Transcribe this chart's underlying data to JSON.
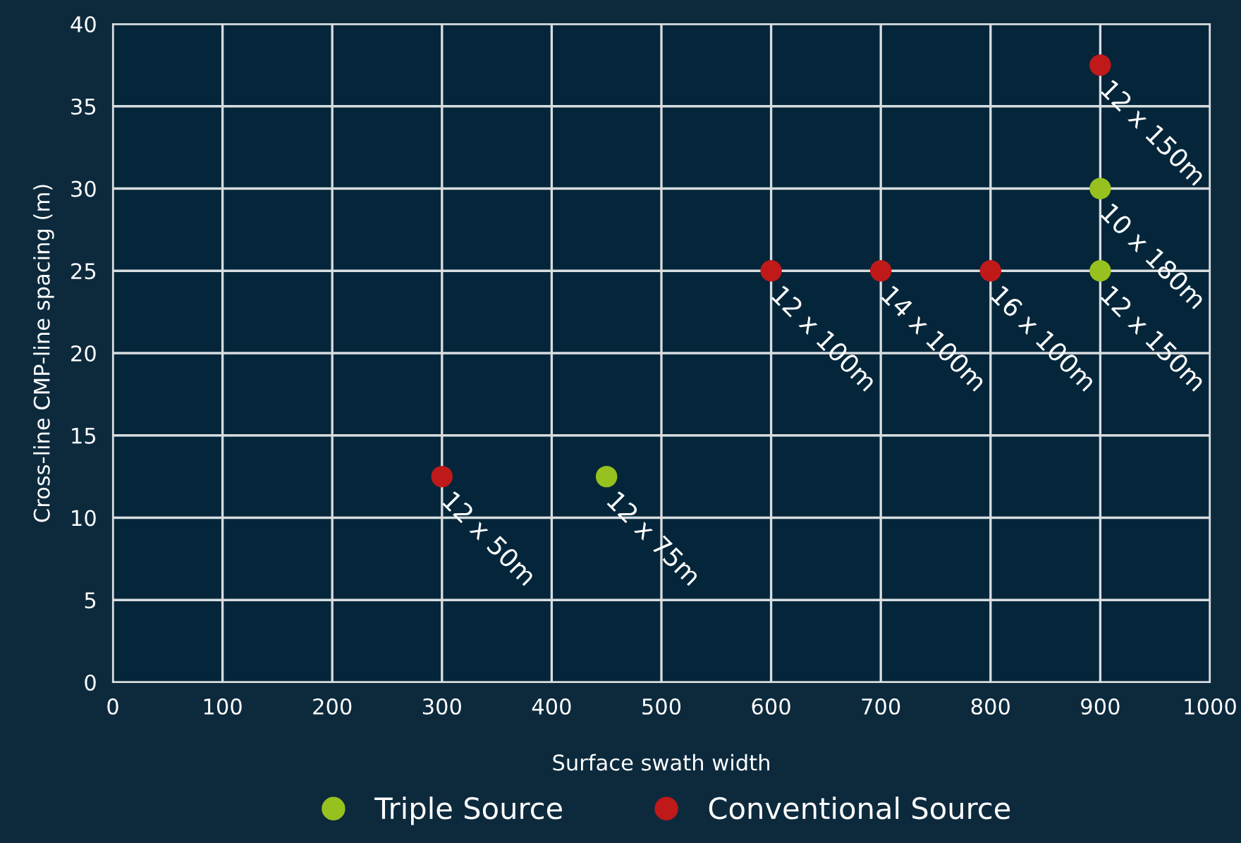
{
  "chart_data": {
    "type": "scatter",
    "xlabel": "Surface swath width",
    "ylabel": "Cross-line CMP-line spacing (m)",
    "xlim": [
      0,
      1000
    ],
    "xticks": [
      0,
      100,
      200,
      300,
      400,
      500,
      600,
      700,
      800,
      900,
      1000
    ],
    "ylim": [
      0,
      40
    ],
    "yticks": [
      0,
      5,
      10,
      15,
      20,
      25,
      30,
      35,
      40
    ],
    "grid": true,
    "legend": "bottom",
    "marker": "circle",
    "series": [
      {
        "name": "Triple Source",
        "color": "#97c11f",
        "x": [
          450,
          900,
          900
        ],
        "values": [
          12.5,
          25,
          30
        ],
        "value_labels": [
          "12 x 75m",
          "12 x 150m",
          "10 x 180m"
        ]
      },
      {
        "name": "Conventional Source",
        "color": "#c0191a",
        "x": [
          300,
          600,
          700,
          800,
          900
        ],
        "values": [
          12.5,
          25,
          25,
          25,
          37.5
        ],
        "value_labels": [
          "12 x 50m",
          "12 x 100m",
          "14 x 100m",
          "16 x 100m",
          "12 x 150m"
        ]
      }
    ]
  }
}
